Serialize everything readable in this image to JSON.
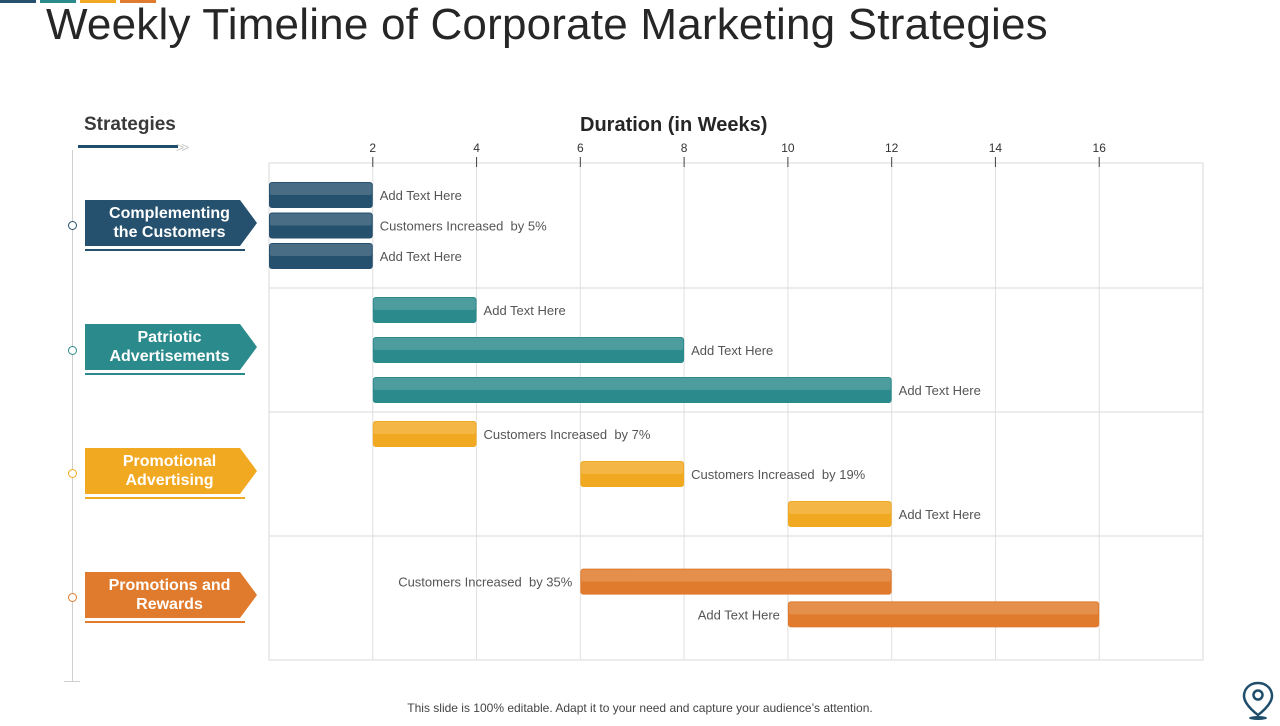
{
  "title": "Weekly Timeline of Corporate Marketing Strategies",
  "strategies_header": "Strategies",
  "footer": "This slide is 100% editable. Adapt it to your need and capture your audience’s attention.",
  "colors": {
    "navy": "#25516e",
    "teal": "#2b8a8c",
    "yellow": "#f2a922",
    "orange": "#e07a2c"
  },
  "strategies": [
    {
      "label": "Complementing the Customers",
      "line1": "Complementing",
      "line2": "the Customers",
      "color": "#25516e"
    },
    {
      "label": "Patriotic Advertisements",
      "line1": "Patriotic",
      "line2": "Advertisements",
      "color": "#2b8a8c"
    },
    {
      "label": "Promotional Advertising",
      "line1": "Promotional",
      "line2": "Advertising",
      "color": "#f2a922"
    },
    {
      "label": "Promotions and Rewards",
      "line1": "Promotions and",
      "line2": "Rewards",
      "color": "#e07a2c"
    }
  ],
  "chart_data": {
    "type": "bar",
    "orientation": "horizontal-gantt",
    "title": "Duration (in Weeks)",
    "xlabel": "Duration (in Weeks)",
    "xlim": [
      0,
      18
    ],
    "xticks": [
      2,
      4,
      6,
      8,
      10,
      12,
      14,
      16
    ],
    "grid": true,
    "bars": [
      {
        "group": 0,
        "start": 0,
        "end": 2,
        "label": "Add Text Here",
        "label_side": "right"
      },
      {
        "group": 0,
        "start": 0,
        "end": 2,
        "label": "Customers Increased  by 5%",
        "label_side": "right"
      },
      {
        "group": 0,
        "start": 0,
        "end": 2,
        "label": "Add Text Here",
        "label_side": "right"
      },
      {
        "group": 1,
        "start": 2,
        "end": 4,
        "label": "Add Text Here",
        "label_side": "right"
      },
      {
        "group": 1,
        "start": 2,
        "end": 8,
        "label": "Add Text Here",
        "label_side": "right"
      },
      {
        "group": 1,
        "start": 2,
        "end": 12,
        "label": "Add Text Here",
        "label_side": "right"
      },
      {
        "group": 2,
        "start": 2,
        "end": 4,
        "label": "Customers Increased  by 7%",
        "label_side": "right"
      },
      {
        "group": 2,
        "start": 6,
        "end": 8,
        "label": "Customers Increased  by 19%",
        "label_side": "right"
      },
      {
        "group": 2,
        "start": 10,
        "end": 12,
        "label": "Add Text Here",
        "label_side": "right"
      },
      {
        "group": 3,
        "start": 6,
        "end": 12,
        "label": "Customers Increased  by 35%",
        "label_side": "left"
      },
      {
        "group": 3,
        "start": 10,
        "end": 16,
        "label": "Add Text Here",
        "label_side": "left"
      }
    ]
  }
}
